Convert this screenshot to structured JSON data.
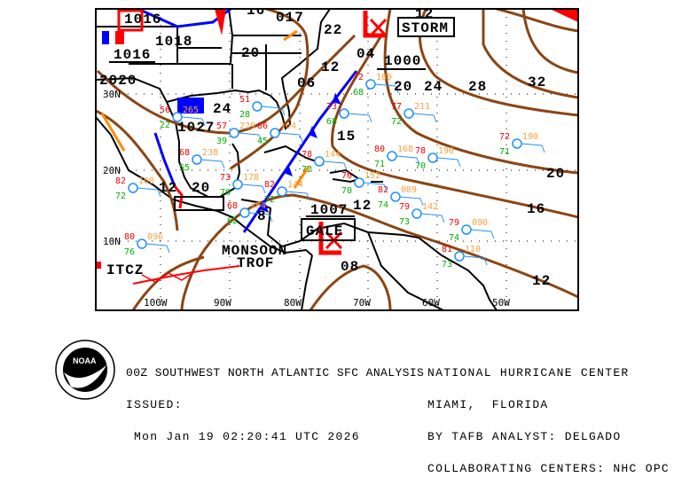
{
  "map": {
    "colors": {
      "isobar": "#8B4513",
      "cold_front": "#0000ff",
      "warm_front": "#ff0000",
      "trough": "#ff8c00",
      "station": "#1e90ff",
      "temp": "#ff0000",
      "dewpoint": "#00b000",
      "pressure": "#ffa040"
    },
    "axis_labels": {
      "lon": [
        "100W",
        "90W",
        "80W",
        "70W",
        "60W",
        "50W"
      ],
      "lat": [
        "30N",
        "20N",
        "10N"
      ]
    },
    "pressure_centers": [
      "1016",
      "1018",
      "1016",
      "017",
      "1027",
      "1007",
      "1000"
    ],
    "isobar_labels": [
      "12",
      "16",
      "20",
      "24",
      "28",
      "32",
      "20",
      "04",
      "12",
      "06",
      "22",
      "16",
      "20",
      "24",
      "20",
      "12",
      "2020",
      "08",
      "12",
      "15",
      "8",
      "12"
    ],
    "features": {
      "storm": "STORM",
      "gale": "GALE",
      "monsoon_1": "MONSOON",
      "monsoon_2": "TROF",
      "itcz": "ITCZ"
    },
    "stations": [
      {
        "temp": "72",
        "pres": "189",
        "dew": "68"
      },
      {
        "temp": "77",
        "pres": "211",
        "dew": "72"
      },
      {
        "temp": "72",
        "pres": "190",
        "dew": "71"
      },
      {
        "temp": "78",
        "pres": "190",
        "dew": "70"
      },
      {
        "temp": "80",
        "pres": "168",
        "dew": "71"
      },
      {
        "temp": "79",
        "pres": "090",
        "dew": "74"
      },
      {
        "temp": "81",
        "pres": "110",
        "dew": "73"
      },
      {
        "temp": "73",
        "pres": "",
        "dew": "68"
      },
      {
        "temp": "80",
        "pres": "096",
        "dew": "76"
      },
      {
        "temp": "82",
        "pres": "108",
        "dew": "72"
      },
      {
        "temp": "68",
        "pres": "238",
        "dew": "55"
      },
      {
        "temp": "57",
        "pres": "229",
        "dew": "39"
      },
      {
        "temp": "82",
        "pres": "144",
        "dew": "72"
      },
      {
        "temp": "82",
        "pres": "089",
        "dew": "74"
      },
      {
        "temp": "79",
        "pres": "142",
        "dew": "73"
      },
      {
        "temp": "76",
        "pres": "152",
        "dew": "70"
      },
      {
        "temp": "73",
        "pres": "178",
        "dew": "70"
      },
      {
        "temp": "68",
        "pres": "154",
        "dew": "62"
      },
      {
        "temp": "51",
        "pres": "",
        "dew": "28"
      },
      {
        "temp": "86",
        "pres": "164",
        "dew": "45"
      },
      {
        "temp": "78",
        "pres": "144",
        "dew": "72"
      },
      {
        "temp": "56",
        "pres": "265",
        "dew": "22"
      }
    ]
  },
  "footer": {
    "title": "00Z SOUTHWEST NORTH ATLANTIC SFC ANALYSIS",
    "issued_label": "ISSUED:",
    "issued_time": "Mon Jan 19 02:20:41 UTC 2026",
    "center": "NATIONAL HURRICANE CENTER",
    "location": "MIAMI,  FLORIDA",
    "analyst": "BY TAFB ANALYST: DELGADO",
    "collab": "COLLABORATING CENTERS: NHC OPC",
    "logo_text": "NOAA"
  }
}
